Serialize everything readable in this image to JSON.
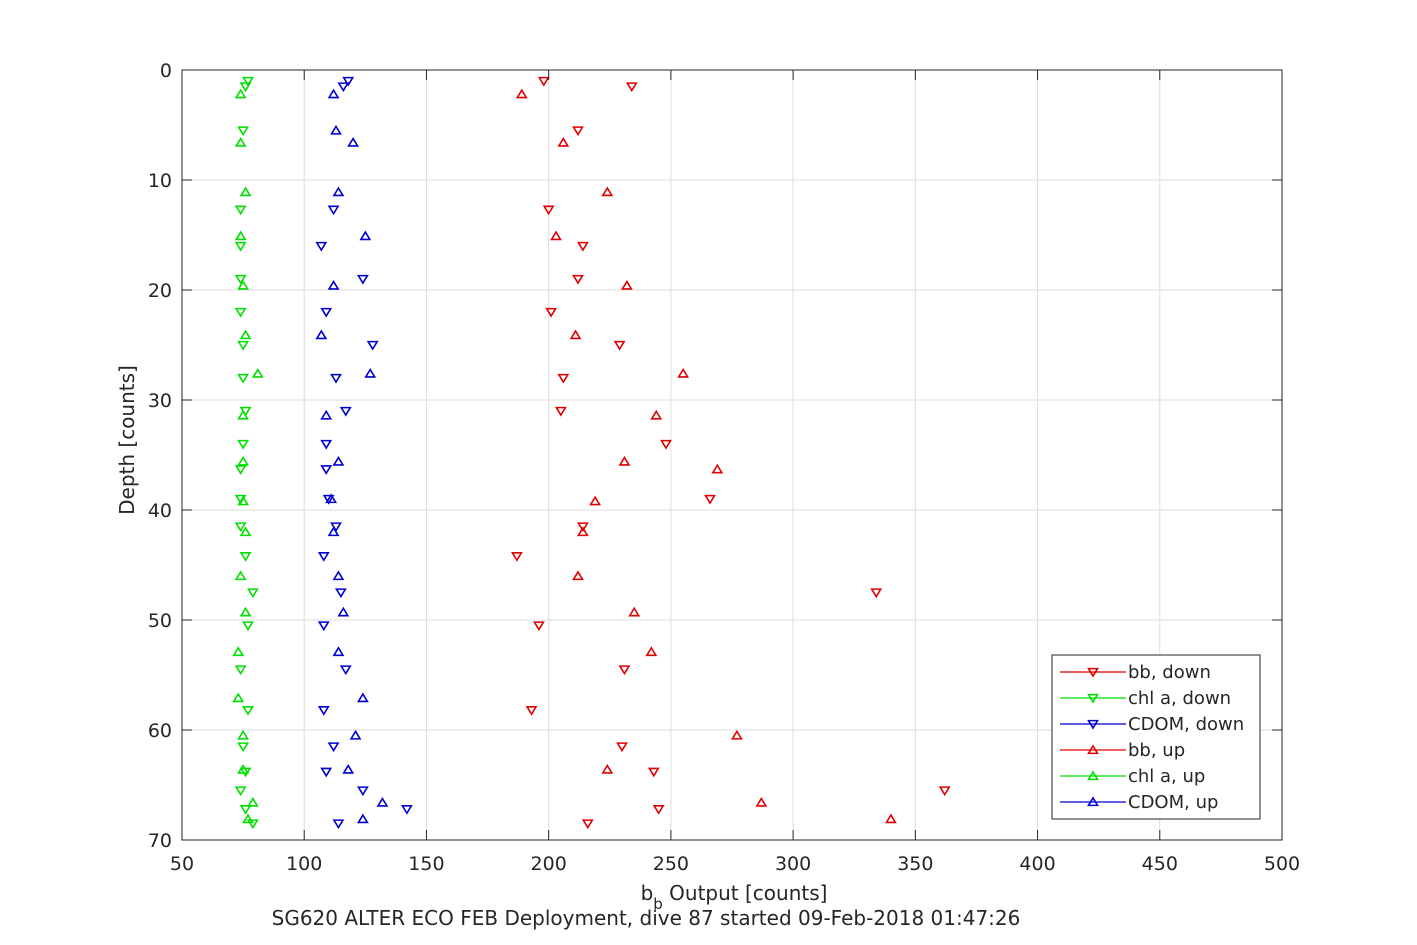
{
  "chart_data": {
    "type": "scatter",
    "title": "",
    "xlabel_main": "b",
    "xlabel_sub": "b",
    "xlabel_rest": " Output [counts]",
    "ylabel": "Depth [counts]",
    "caption": "SG620 ALTER ECO FEB Deployment, dive 87 started 09-Feb-2018 01:47:26",
    "xlim": [
      50,
      500
    ],
    "ylim": [
      0,
      70
    ],
    "y_reversed": true,
    "grid": true,
    "legend_position": "bottom-right",
    "xticks": [
      50,
      100,
      150,
      200,
      250,
      300,
      350,
      400,
      450,
      500
    ],
    "yticks": [
      0,
      10,
      20,
      30,
      40,
      50,
      60,
      70
    ],
    "series": [
      {
        "name": "bb, down",
        "color": "#e00000",
        "marker": "down",
        "points": [
          [
            198,
            1
          ],
          [
            234,
            1.5
          ],
          [
            212,
            5.5
          ],
          [
            200,
            12.7
          ],
          [
            214,
            16
          ],
          [
            212,
            19
          ],
          [
            201,
            22
          ],
          [
            229,
            25
          ],
          [
            206,
            28
          ],
          [
            205,
            31
          ],
          [
            248,
            34
          ],
          [
            266,
            39
          ],
          [
            214,
            41.5
          ],
          [
            187,
            44.2
          ],
          [
            334,
            47.5
          ],
          [
            196,
            50.5
          ],
          [
            231,
            54.5
          ],
          [
            193,
            58.2
          ],
          [
            230,
            61.5
          ],
          [
            243,
            63.8
          ],
          [
            362,
            65.5
          ],
          [
            245,
            67.2
          ],
          [
            216,
            68.5
          ]
        ]
      },
      {
        "name": "chl a, down",
        "color": "#00e000",
        "marker": "down",
        "points": [
          [
            77,
            1
          ],
          [
            76,
            1.5
          ],
          [
            75,
            5.5
          ],
          [
            74,
            12.7
          ],
          [
            74,
            16
          ],
          [
            74,
            19
          ],
          [
            74,
            22
          ],
          [
            75,
            25
          ],
          [
            75,
            28
          ],
          [
            76,
            31
          ],
          [
            75,
            34
          ],
          [
            74,
            36.3
          ],
          [
            74,
            39
          ],
          [
            74,
            41.5
          ],
          [
            76,
            44.2
          ],
          [
            79,
            47.5
          ],
          [
            77,
            50.5
          ],
          [
            74,
            54.5
          ],
          [
            77,
            58.2
          ],
          [
            75,
            61.5
          ],
          [
            76,
            63.8
          ],
          [
            74,
            65.5
          ],
          [
            76,
            67.2
          ],
          [
            79,
            68.5
          ]
        ]
      },
      {
        "name": "CDOM, down",
        "color": "#0000d0",
        "marker": "down",
        "points": [
          [
            118,
            1
          ],
          [
            116,
            1.5
          ],
          [
            112,
            12.7
          ],
          [
            107,
            16
          ],
          [
            124,
            19
          ],
          [
            109,
            22
          ],
          [
            128,
            25
          ],
          [
            113,
            28
          ],
          [
            117,
            31
          ],
          [
            109,
            34
          ],
          [
            109,
            36.3
          ],
          [
            110,
            39
          ],
          [
            113,
            41.5
          ],
          [
            108,
            44.2
          ],
          [
            115,
            47.5
          ],
          [
            108,
            50.5
          ],
          [
            117,
            54.5
          ],
          [
            108,
            58.2
          ],
          [
            112,
            61.5
          ],
          [
            109,
            63.8
          ],
          [
            124,
            65.5
          ],
          [
            142,
            67.2
          ],
          [
            114,
            68.5
          ]
        ]
      },
      {
        "name": "bb, up",
        "color": "#e00000",
        "marker": "up",
        "points": [
          [
            189,
            2.2
          ],
          [
            206,
            6.6
          ],
          [
            224,
            11.1
          ],
          [
            203,
            15.1
          ],
          [
            232,
            19.6
          ],
          [
            211,
            24.1
          ],
          [
            255,
            27.6
          ],
          [
            244,
            31.4
          ],
          [
            231,
            35.6
          ],
          [
            269,
            36.3
          ],
          [
            219,
            39.2
          ],
          [
            214,
            42
          ],
          [
            212,
            46
          ],
          [
            235,
            49.3
          ],
          [
            242,
            52.9
          ],
          [
            277,
            60.5
          ],
          [
            224,
            63.6
          ],
          [
            287,
            66.6
          ],
          [
            340,
            68.1
          ]
        ]
      },
      {
        "name": "chl a, up",
        "color": "#00e000",
        "marker": "up",
        "points": [
          [
            74,
            2.2
          ],
          [
            74,
            6.6
          ],
          [
            76,
            11.1
          ],
          [
            74,
            15.1
          ],
          [
            75,
            19.6
          ],
          [
            76,
            24.1
          ],
          [
            81,
            27.6
          ],
          [
            75,
            31.4
          ],
          [
            75,
            35.6
          ],
          [
            75,
            39.2
          ],
          [
            76,
            42
          ],
          [
            74,
            46
          ],
          [
            76,
            49.3
          ],
          [
            73,
            52.9
          ],
          [
            73,
            57.1
          ],
          [
            75,
            60.5
          ],
          [
            75,
            63.6
          ],
          [
            79,
            66.6
          ],
          [
            77,
            68.1
          ]
        ]
      },
      {
        "name": "CDOM, up",
        "color": "#0000d0",
        "marker": "up",
        "points": [
          [
            112,
            2.2
          ],
          [
            113,
            5.5
          ],
          [
            120,
            6.6
          ],
          [
            114,
            11.1
          ],
          [
            125,
            15.1
          ],
          [
            112,
            19.6
          ],
          [
            107,
            24.1
          ],
          [
            127,
            27.6
          ],
          [
            109,
            31.4
          ],
          [
            114,
            35.6
          ],
          [
            111,
            39
          ],
          [
            112,
            42
          ],
          [
            114,
            46
          ],
          [
            116,
            49.3
          ],
          [
            114,
            52.9
          ],
          [
            124,
            57.1
          ],
          [
            121,
            60.5
          ],
          [
            118,
            63.6
          ],
          [
            132,
            66.6
          ],
          [
            124,
            68.1
          ]
        ]
      }
    ]
  }
}
